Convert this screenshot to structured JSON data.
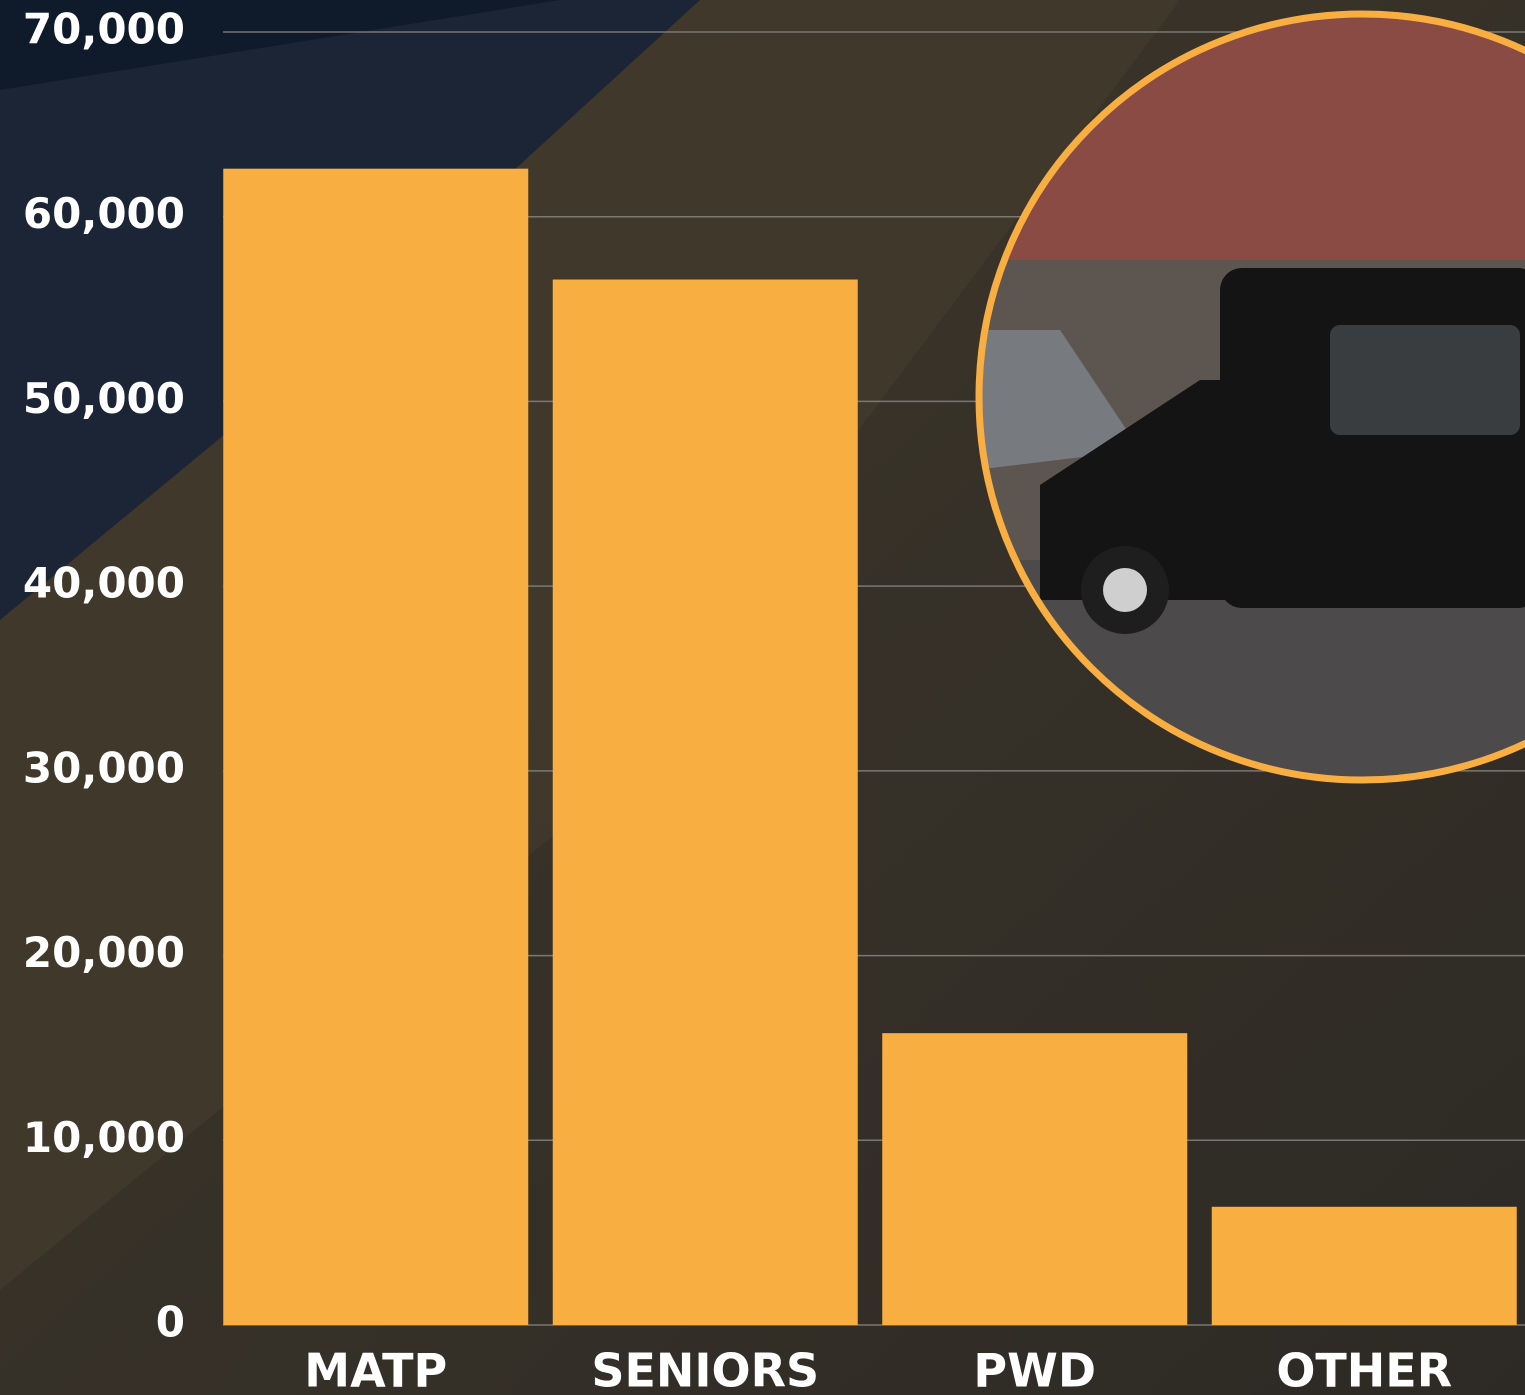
{
  "chart_data": {
    "type": "bar",
    "categories": [
      "MATP",
      "SENIORS",
      "PWD",
      "OTHER"
    ],
    "values": [
      62600,
      56600,
      15800,
      6400
    ],
    "color": "#f9ae42",
    "ylim": [
      0,
      70000
    ],
    "yticks": [
      0,
      {
        "value": 10000,
        "label": "10,000"
      },
      {
        "value": 20000,
        "label": "20,000"
      },
      {
        "value": 30000,
        "label": "30,000"
      },
      {
        "value": 40000,
        "label": "40,000"
      },
      {
        "value": 50000,
        "label": "50,000"
      },
      {
        "value": 60000,
        "label": "60,000"
      },
      {
        "value": 70000,
        "label": "70,000"
      }
    ],
    "grid": true
  }
}
